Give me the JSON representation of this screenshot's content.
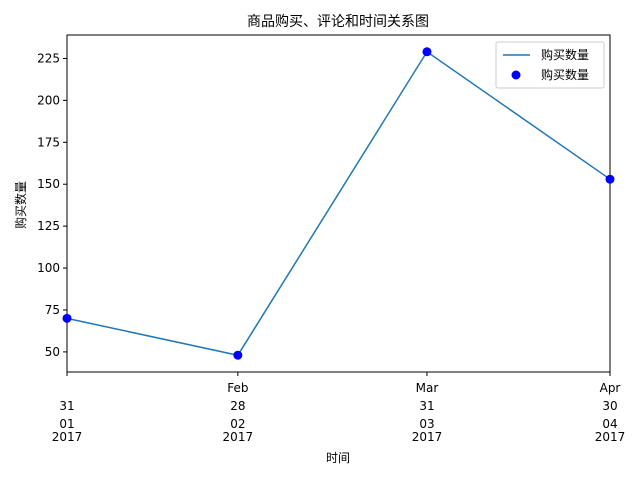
{
  "chart_data": {
    "type": "line",
    "title": "商品购买、评论和时间关系图",
    "xlabel": "时间",
    "ylabel": "购买数量",
    "x": [
      "2017-01-31",
      "2017-02-28",
      "2017-03-31",
      "2017-04-30"
    ],
    "x_tick_labels": [
      [
        "",
        "31",
        "01",
        "2017"
      ],
      [
        "Feb",
        "28",
        "02",
        "2017"
      ],
      [
        "Mar",
        "31",
        "03",
        "2017"
      ],
      [
        "Apr",
        "30",
        "04",
        "2017"
      ]
    ],
    "ylim": [
      38,
      239
    ],
    "yticks": [
      50,
      75,
      100,
      125,
      150,
      175,
      200,
      225
    ],
    "grid": false,
    "legend_position": "top-right",
    "series": [
      {
        "name": "购买数量",
        "style": "line",
        "color": "#1f77b4",
        "values": [
          70,
          48,
          229,
          153
        ]
      },
      {
        "name": "购买数量",
        "style": "markers",
        "color": "#0000ff",
        "values": [
          70,
          48,
          229,
          153
        ]
      }
    ]
  }
}
